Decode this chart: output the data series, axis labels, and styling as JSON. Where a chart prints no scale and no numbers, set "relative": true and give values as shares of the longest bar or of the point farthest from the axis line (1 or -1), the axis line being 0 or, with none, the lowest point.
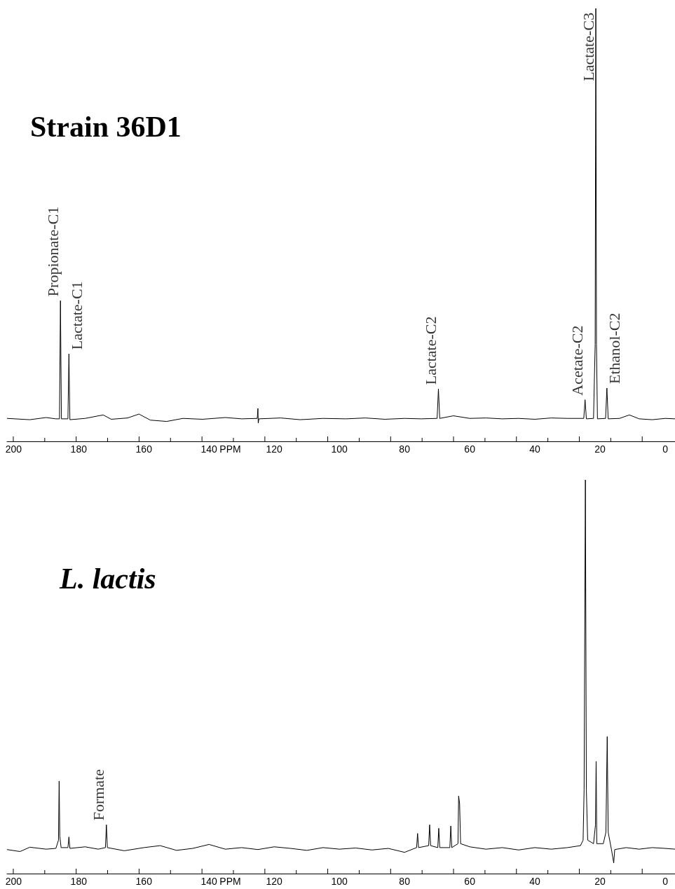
{
  "chart_data": [
    {
      "type": "line",
      "title": "Strain 36D1",
      "xlabel": "PPM",
      "relative": true,
      "tick_labels": "x",
      "xlim": [
        202,
        -3
      ],
      "xticks": [
        200,
        180,
        160,
        140,
        120,
        100,
        80,
        60,
        40,
        20,
        0
      ],
      "series": [
        {
          "color": "#000000",
          "x": [
            202,
            195,
            190,
            187,
            185.9,
            185.6,
            185.3,
            183.3,
            183.0,
            182.7,
            178,
            172.5,
            170,
            165,
            161.5,
            158,
            153,
            148,
            142,
            135,
            130,
            125.2,
            125,
            124.9,
            124.7,
            118,
            112,
            105,
            98,
            92,
            86,
            80,
            75,
            70.0,
            69.6,
            69.2,
            65,
            60,
            55,
            50,
            45,
            40,
            35,
            30,
            25.0,
            24.6,
            24.2,
            22.0,
            21.5,
            21.3,
            21.1,
            20.8,
            18.3,
            17.9,
            17.5,
            14,
            11,
            8,
            4,
            0,
            -3
          ],
          "values": [
            0.053,
            0.05,
            0.055,
            0.052,
            0.052,
            0.325,
            0.052,
            0.052,
            0.202,
            0.05,
            0.053,
            0.061,
            0.051,
            0.054,
            0.063,
            0.049,
            0.046,
            0.053,
            0.051,
            0.055,
            0.052,
            0.053,
            0.076,
            0.042,
            0.052,
            0.054,
            0.05,
            0.053,
            0.052,
            0.054,
            0.051,
            0.053,
            0.052,
            0.053,
            0.121,
            0.053,
            0.059,
            0.053,
            0.054,
            0.052,
            0.053,
            0.051,
            0.054,
            0.053,
            0.053,
            0.096,
            0.052,
            0.053,
            0.224,
            1.0,
            0.224,
            0.052,
            0.053,
            0.123,
            0.052,
            0.053,
            0.061,
            0.052,
            0.05,
            0.053,
            0.052
          ]
        }
      ],
      "annotations": [
        {
          "text": "Propionate-C1",
          "x": 185.6,
          "y": 0.325
        },
        {
          "text": "Lactate-C1",
          "x": 183.0,
          "y": 0.202
        },
        {
          "text": "Lactate-C2",
          "x": 69.6,
          "y": 0.121
        },
        {
          "text": "Acetate-C2",
          "x": 24.6,
          "y": 0.096
        },
        {
          "text": "Lactate-C3",
          "x": 21.3,
          "y": 1.0
        },
        {
          "text": "Ethanol-C2",
          "x": 17.9,
          "y": 0.123
        }
      ]
    },
    {
      "type": "line",
      "title": "L. lactis",
      "xlabel": "PPM",
      "relative": true,
      "tick_labels": "x",
      "xlim": [
        202,
        -3
      ],
      "xticks": [
        200,
        180,
        160,
        140,
        120,
        100,
        80,
        60,
        40,
        20,
        0
      ],
      "series": [
        {
          "color": "#000000",
          "x": [
            202,
            198,
            195,
            190,
            187,
            186.2,
            186.0,
            185.8,
            185.4,
            183.3,
            183.0,
            182.7,
            178,
            174,
            171.8,
            171.5,
            171.2,
            166,
            160,
            155,
            150,
            145,
            140,
            135,
            130,
            125,
            120,
            115,
            110,
            105,
            100,
            95,
            90,
            85,
            80,
            76.3,
            76.0,
            75.7,
            72.6,
            72.3,
            72.0,
            69.8,
            69.5,
            69.2,
            66.1,
            65.8,
            65.5,
            63.6,
            63.4,
            63.1,
            62.8,
            60,
            55,
            50,
            45,
            40,
            35,
            30,
            26,
            25.2,
            24.9,
            24.5,
            24.2,
            23.8,
            22,
            21.4,
            21.2,
            21.0,
            19,
            18.2,
            17.8,
            17.5,
            16.5,
            15.8,
            15.5,
            12,
            8,
            4,
            0,
            -3
          ],
          "values": [
            0.061,
            0.056,
            0.067,
            0.062,
            0.064,
            0.085,
            0.235,
            0.095,
            0.066,
            0.066,
            0.093,
            0.064,
            0.068,
            0.062,
            0.066,
            0.124,
            0.066,
            0.058,
            0.066,
            0.071,
            0.059,
            0.064,
            0.074,
            0.062,
            0.066,
            0.061,
            0.068,
            0.064,
            0.059,
            0.066,
            0.062,
            0.065,
            0.06,
            0.064,
            0.054,
            0.066,
            0.102,
            0.066,
            0.071,
            0.124,
            0.071,
            0.066,
            0.115,
            0.066,
            0.066,
            0.121,
            0.066,
            0.076,
            0.197,
            0.178,
            0.076,
            0.068,
            0.062,
            0.066,
            0.06,
            0.066,
            0.062,
            0.066,
            0.071,
            0.085,
            0.212,
            1.0,
            0.212,
            0.085,
            0.076,
            0.124,
            0.285,
            0.076,
            0.076,
            0.105,
            0.348,
            0.105,
            0.061,
            0.027,
            0.061,
            0.066,
            0.062,
            0.066,
            0.064,
            0.062
          ]
        }
      ],
      "annotations": [
        {
          "text": "Formate",
          "x": 171.5,
          "y": 0.124
        }
      ]
    }
  ]
}
